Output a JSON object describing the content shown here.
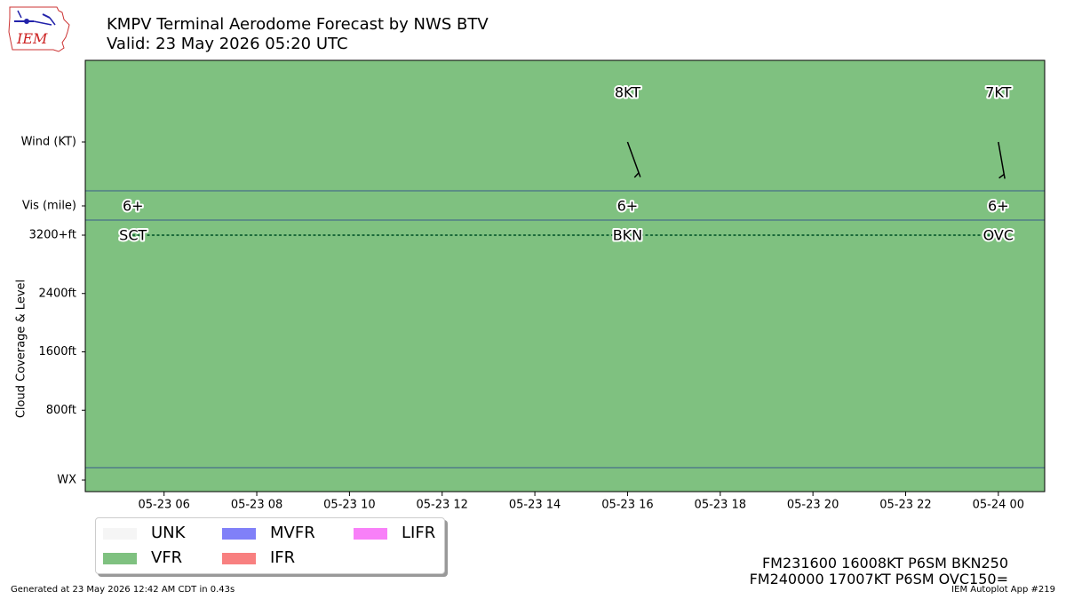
{
  "header": {
    "title": "KMPV Terminal Aerodome Forecast by NWS BTV",
    "subtitle": "Valid: 23 May 2026 05:20 UTC",
    "logo_text": "IEM"
  },
  "chart_data": {
    "type": "timeline",
    "background_category": "VFR",
    "x_ticks": [
      "05-23 06",
      "05-23 08",
      "05-23 10",
      "05-23 12",
      "05-23 14",
      "05-23 16",
      "05-23 18",
      "05-23 20",
      "05-23 22",
      "05-24 00"
    ],
    "xlim_hours": [
      4.3,
      25.0
    ],
    "y_rows": {
      "wind": "Wind (KT)",
      "vis": "Vis (mile)",
      "wx": "WX"
    },
    "ylabel": "Cloud Coverage & Level",
    "cloud_ticks": [
      {
        "label": "3200+ft",
        "value": 3200
      },
      {
        "label": "2400ft",
        "value": 2400
      },
      {
        "label": "1600ft",
        "value": 1600
      },
      {
        "label": "800ft",
        "value": 800
      }
    ],
    "forecasts": [
      {
        "time": "05-23 05:20",
        "hour": 5.33,
        "visibility": "6+",
        "cloud": "SCT",
        "cloud_level": 3200
      },
      {
        "time": "05-23 16:00",
        "hour": 16.0,
        "wind_label": "8KT",
        "wind_dir_deg": 160,
        "wind_speed_kt": 8,
        "visibility": "6+",
        "cloud": "BKN",
        "cloud_level": 3200
      },
      {
        "time": "05-24 00:00",
        "hour": 24.0,
        "wind_label": "7KT",
        "wind_dir_deg": 170,
        "wind_speed_kt": 7,
        "visibility": "6+",
        "cloud": "OVC",
        "cloud_level": 3200
      }
    ]
  },
  "legend": [
    {
      "label": "UNK",
      "color": "#f5f5f5"
    },
    {
      "label": "VFR",
      "color": "#7fc180"
    },
    {
      "label": "MVFR",
      "color": "#8080f8"
    },
    {
      "label": "IFR",
      "color": "#f88080"
    },
    {
      "label": "LIFR",
      "color": "#f880f8"
    }
  ],
  "taf_text": {
    "line1": "FM231600 16008KT P6SM BKN250",
    "line2": "FM240000 17007KT P6SM OVC150="
  },
  "footer": {
    "generated": "Generated at 23 May 2026 12:42 AM CDT in 0.43s",
    "app": "IEM Autoplot App #219"
  }
}
